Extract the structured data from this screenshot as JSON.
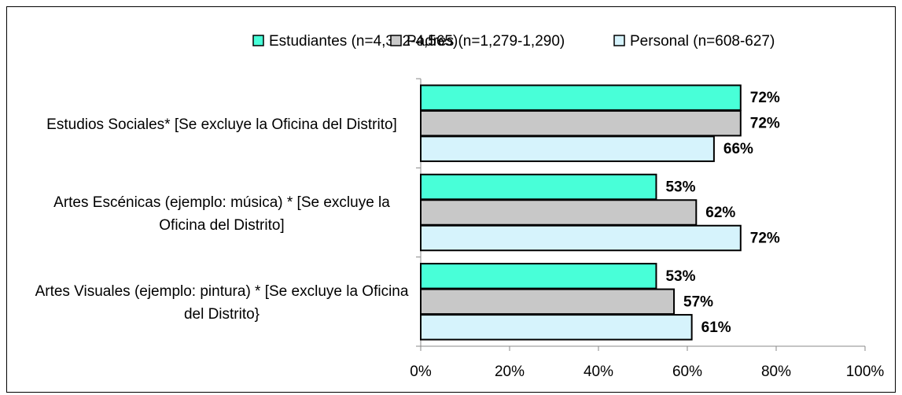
{
  "chart_data": {
    "type": "hbar",
    "categories": [
      "Estudios Sociales* [Se excluye la Oficina del Distrito]",
      "Artes Escénicas (ejemplo: música) * [Se excluye la Oficina del Distrito]",
      "Artes Visuales (ejemplo: pintura) * [Se excluye la Oficina del Distrito}"
    ],
    "series": [
      {
        "name": "Estudiantes (n=4,392-4,565)",
        "color": "#48FFD8",
        "values": [
          72,
          53,
          53
        ],
        "value_labels": [
          "72%",
          "53%",
          "53%"
        ]
      },
      {
        "name": "Padres (n=1,279-1,290)",
        "color": "#C8C8C8",
        "values": [
          72,
          62,
          57
        ],
        "value_labels": [
          "72%",
          "62%",
          "57%"
        ]
      },
      {
        "name": "Personal (n=608-627)",
        "color": "#D6F3FC",
        "values": [
          66,
          72,
          61
        ],
        "value_labels": [
          "66%",
          "72%",
          "61%"
        ]
      }
    ],
    "xlim": [
      0,
      100
    ],
    "xticks": [
      {
        "value": 0,
        "label": "0%"
      },
      {
        "value": 20,
        "label": "20%"
      },
      {
        "value": 40,
        "label": "40%"
      },
      {
        "value": 60,
        "label": "60%"
      },
      {
        "value": 80,
        "label": "80%"
      },
      {
        "value": 100,
        "label": "100%"
      }
    ],
    "legend": "top"
  }
}
